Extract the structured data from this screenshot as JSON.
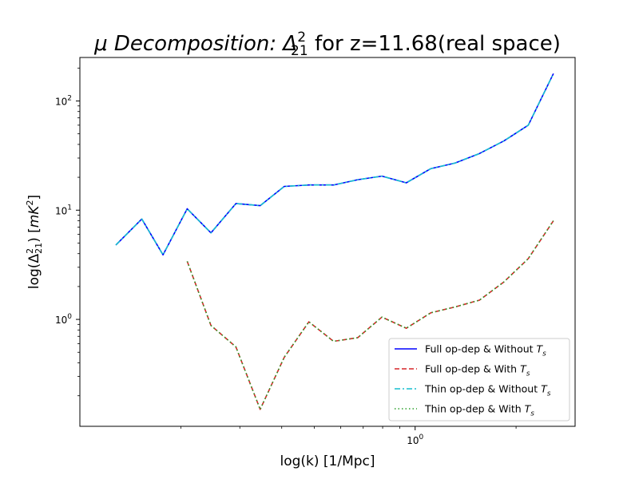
{
  "chart_data": {
    "type": "line",
    "title": {
      "prefix": "μ Decomposition: Δ",
      "sup": "2",
      "sub": "21",
      "suffix": " for z=11.68(real space)"
    },
    "xlabel": "log(k) [1/Mpc]",
    "ylabel": {
      "prefix": "log(Δ",
      "sup": "2",
      "sub": "21",
      "middle": ") [",
      "unit": "mK",
      "unit_sup": "2",
      "suffix": "]"
    },
    "x_scale": "log",
    "y_scale": "log",
    "xlim": [
      0.1,
      3.0
    ],
    "ylim": [
      0.105,
      250
    ],
    "x_major_ticks": [
      {
        "value": 1,
        "mantissa": "10",
        "exp": "0"
      }
    ],
    "y_major_ticks": [
      {
        "value": 1,
        "mantissa": "10",
        "exp": "0"
      },
      {
        "value": 10,
        "mantissa": "10",
        "exp": "1"
      },
      {
        "value": 100,
        "mantissa": "10",
        "exp": "2"
      }
    ],
    "legend_position": "lower-right",
    "series": [
      {
        "name": "Full op-dep & Without ",
        "name_math": "T",
        "name_sub": "s",
        "color": "#0000ff",
        "style": "solid",
        "x": [
          0.128,
          0.153,
          0.177,
          0.209,
          0.246,
          0.292,
          0.345,
          0.407,
          0.482,
          0.571,
          0.674,
          0.796,
          0.941,
          1.114,
          1.315,
          1.555,
          1.839,
          2.175,
          2.585
        ],
        "y": [
          4.8,
          8.3,
          3.9,
          10.3,
          6.2,
          11.5,
          11.0,
          16.5,
          17.0,
          17.0,
          19.0,
          20.5,
          17.8,
          24.0,
          27.0,
          33.0,
          43.0,
          60.0,
          178.0
        ]
      },
      {
        "name": "Full op-dep & With ",
        "name_math": "T",
        "name_sub": "s",
        "color": "#d62728",
        "style": "dashed",
        "x": [
          0.209,
          0.246,
          0.292,
          0.345,
          0.407,
          0.482,
          0.571,
          0.674,
          0.796,
          0.941,
          1.114,
          1.315,
          1.555,
          1.839,
          2.175,
          2.585
        ],
        "y": [
          3.4,
          0.88,
          0.56,
          0.15,
          0.45,
          0.95,
          0.63,
          0.68,
          1.05,
          0.83,
          1.15,
          1.3,
          1.5,
          2.2,
          3.6,
          8.0
        ]
      },
      {
        "name": "Thin op-dep & Without ",
        "name_math": "T",
        "name_sub": "s",
        "color": "#17becf",
        "style": "dashdot",
        "x": [
          0.128,
          0.153,
          0.177,
          0.209,
          0.246,
          0.292,
          0.345,
          0.407,
          0.482,
          0.571,
          0.674,
          0.796,
          0.941,
          1.114,
          1.315,
          1.555,
          1.839,
          2.175,
          2.585
        ],
        "y": [
          4.8,
          8.3,
          3.9,
          10.3,
          6.2,
          11.5,
          11.0,
          16.5,
          17.0,
          17.0,
          19.0,
          20.5,
          17.8,
          24.0,
          27.0,
          33.0,
          43.0,
          60.0,
          178.0
        ]
      },
      {
        "name": "Thin op-dep & With ",
        "name_math": "T",
        "name_sub": "s",
        "color": "#2ca02c",
        "style": "dotted",
        "x": [
          0.209,
          0.246,
          0.292,
          0.345,
          0.407,
          0.482,
          0.571,
          0.674,
          0.796,
          0.941,
          1.114,
          1.315,
          1.555,
          1.839,
          2.175,
          2.585
        ],
        "y": [
          3.4,
          0.88,
          0.56,
          0.15,
          0.45,
          0.95,
          0.63,
          0.68,
          1.05,
          0.83,
          1.15,
          1.3,
          1.5,
          2.2,
          3.6,
          8.0
        ]
      }
    ]
  }
}
